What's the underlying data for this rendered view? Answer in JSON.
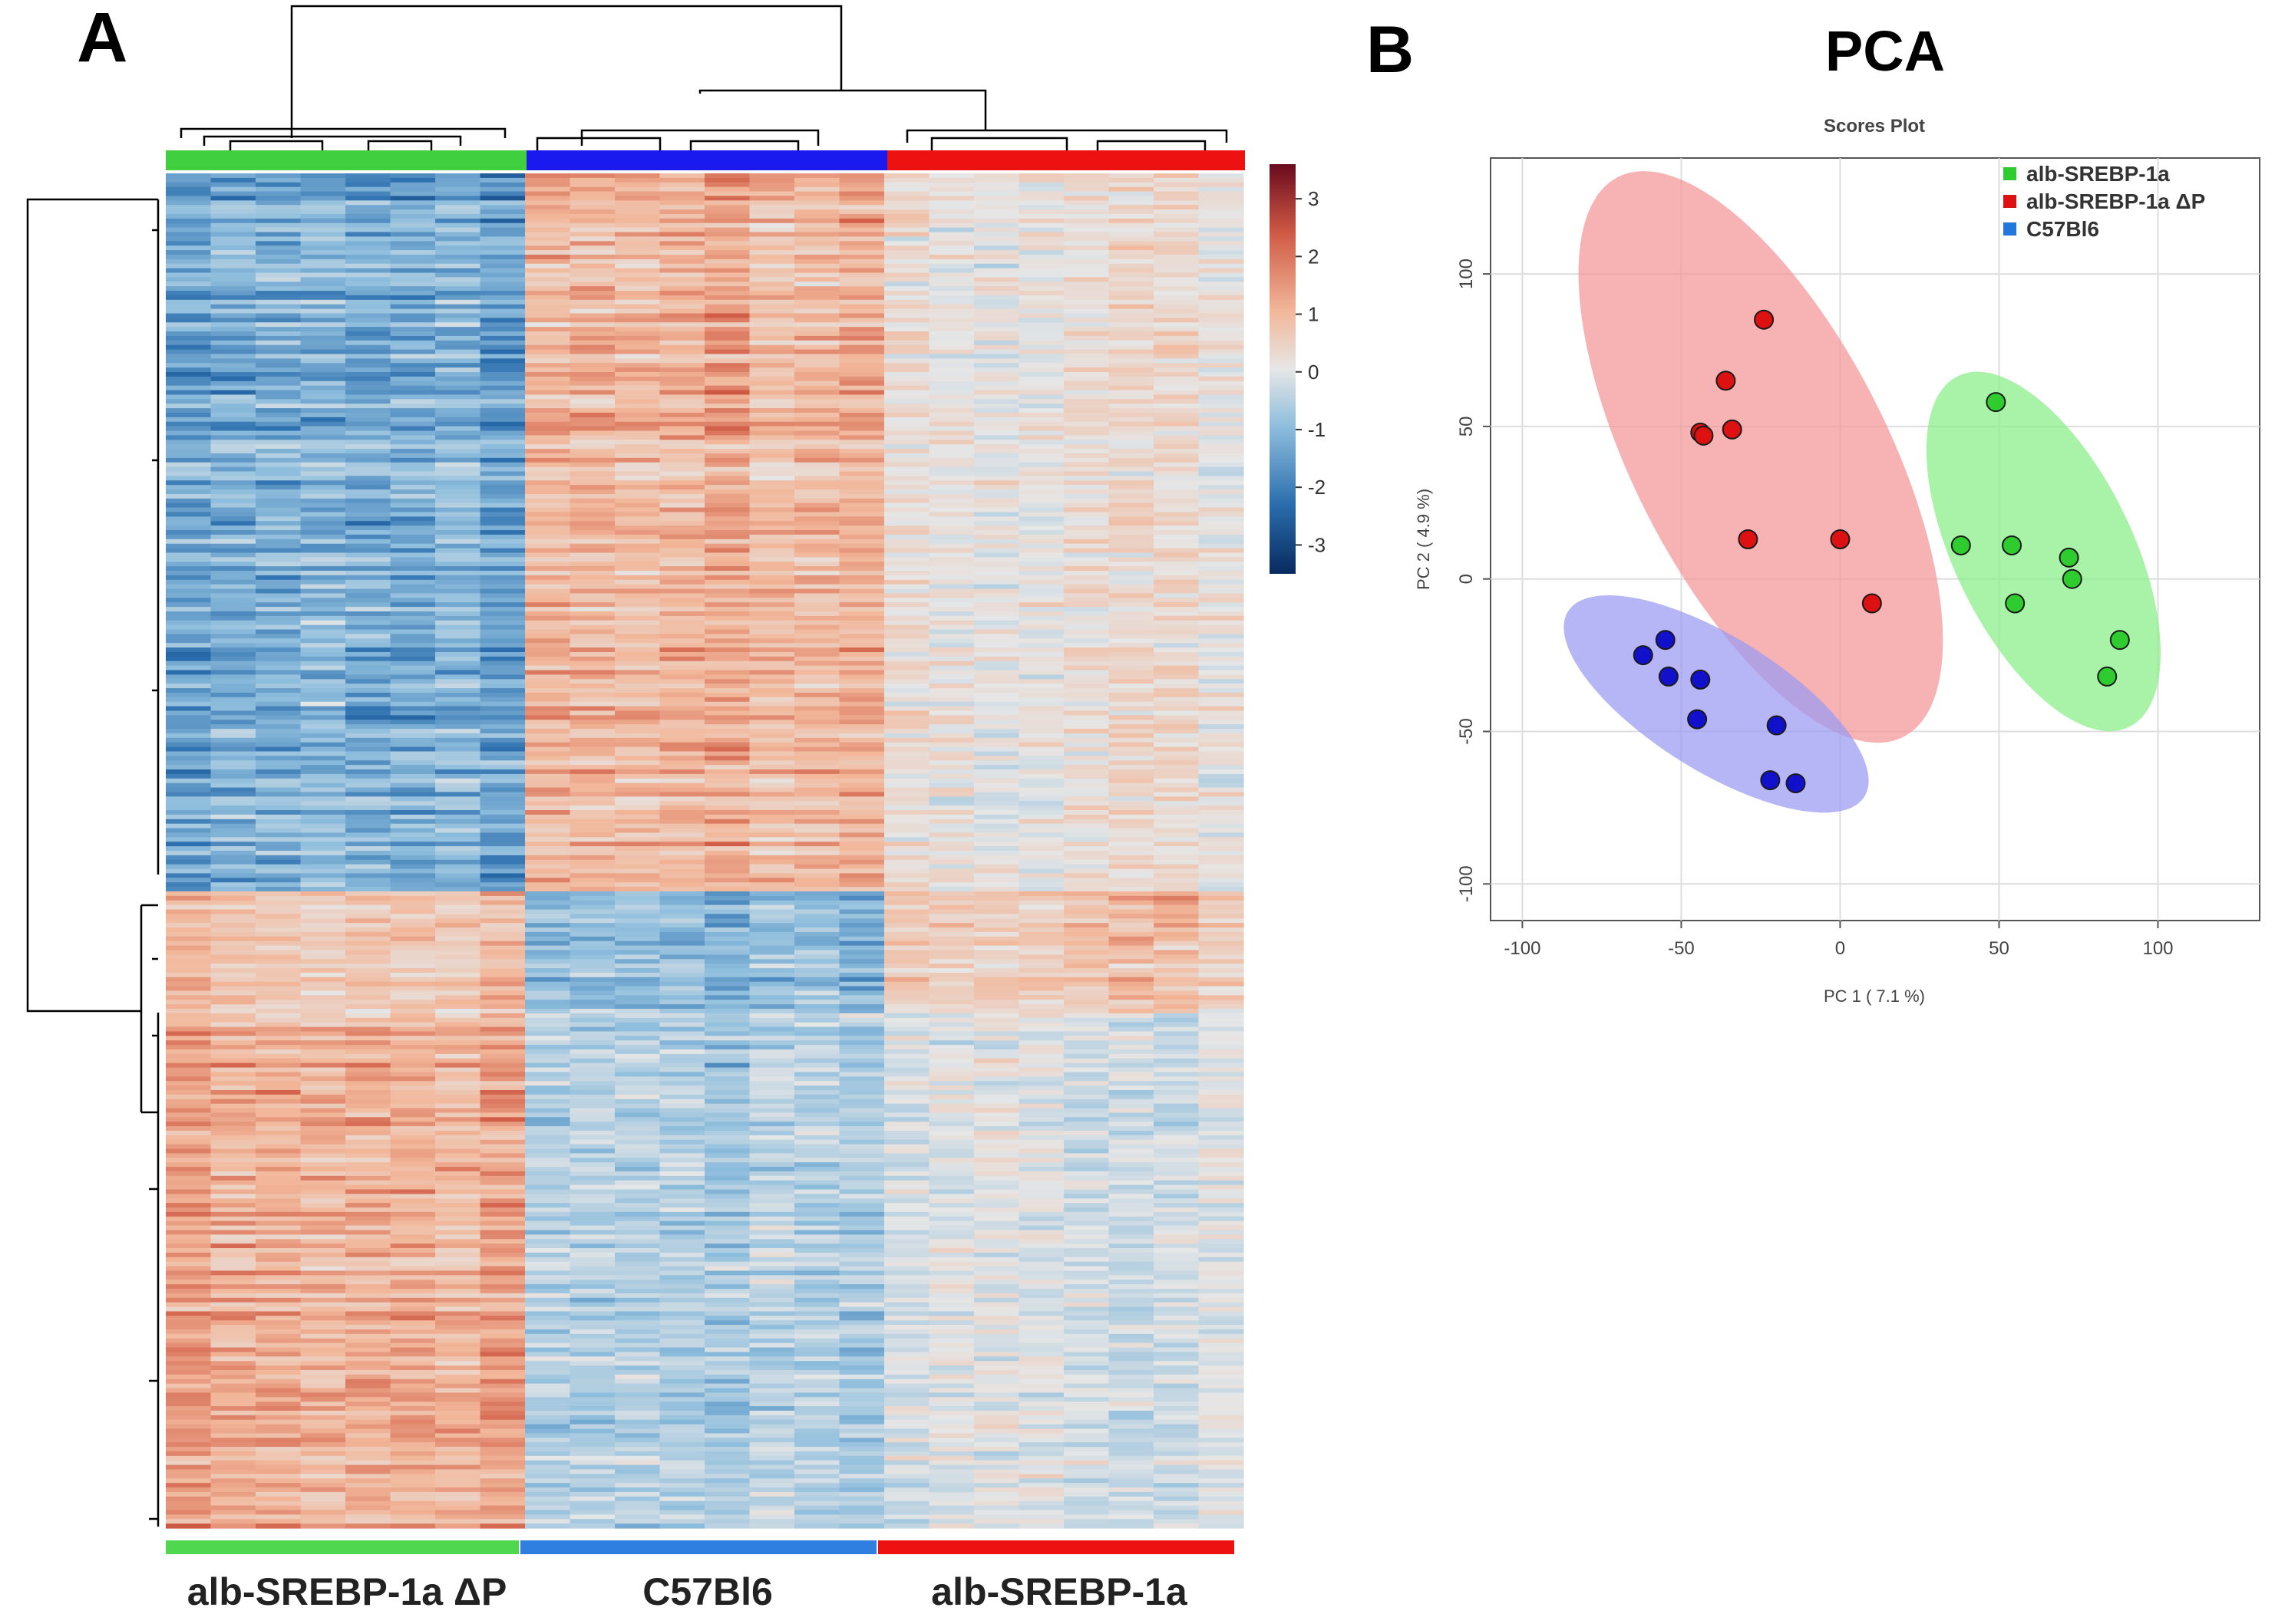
{
  "panel_a": {
    "label": "A",
    "groups": [
      {
        "name": "alb-SREBP-1a ΔP",
        "color": "#3fcf3f",
        "bottom_color": "#4fd84f"
      },
      {
        "name": "C57Bl6",
        "color": "#1a1aee",
        "bottom_color": "#2f7fe0"
      },
      {
        "name": "alb-SREBP-1a",
        "color": "#ee1111",
        "bottom_color": "#ee1111"
      }
    ],
    "colorbar": {
      "ticks": [
        "3",
        "2",
        "1",
        "0",
        "-1",
        "-2",
        "-3"
      ],
      "min": -3.5,
      "max": 3.6,
      "colors": [
        "#082a5e",
        "#2b6eae",
        "#8fbedd",
        "#e6e6e6",
        "#f2b79a",
        "#d05b45",
        "#6a0a1e"
      ]
    }
  },
  "panel_b": {
    "label": "B",
    "title": "PCA"
  },
  "chart_data": [
    {
      "type": "heatmap",
      "title": "",
      "columns_per_group": 8,
      "rows": 300,
      "row_clusters": [
        {
          "rows_fraction": 0.53,
          "pattern": [
            -1.3,
            1.2,
            0.35
          ]
        },
        {
          "rows_fraction": 0.09,
          "pattern": [
            0.8,
            -1.1,
            0.9
          ]
        },
        {
          "rows_fraction": 0.38,
          "pattern": [
            1.3,
            -0.7,
            -0.25
          ]
        }
      ],
      "value_range": [
        -3.5,
        3.6
      ],
      "xlabels": [
        "alb-SREBP-1a ΔP",
        "C57Bl6",
        "alb-SREBP-1a"
      ]
    },
    {
      "type": "scatter",
      "title": "Scores Plot",
      "xlabel": "PC 1 ( 7.1 %)",
      "ylabel": "PC 2 ( 4.9 %)",
      "xlim": [
        -110,
        132
      ],
      "ylim": [
        -112,
        138
      ],
      "xticks": [
        -100,
        -50,
        0,
        50,
        100
      ],
      "yticks": [
        -100,
        -50,
        0,
        50,
        100
      ],
      "grid": true,
      "legend_position": "top-right",
      "series": [
        {
          "name": "alb-SREBP-1a",
          "color": "#2ecc2e",
          "ellipse_color": "#88ee88",
          "ellipse": {
            "cx": 64,
            "cy": 9,
            "rx": 28,
            "ry": 64,
            "angle": -26
          },
          "points": [
            [
              49,
              58
            ],
            [
              38,
              11
            ],
            [
              54,
              11
            ],
            [
              55,
              -8
            ],
            [
              72,
              7
            ],
            [
              73,
              0
            ],
            [
              88,
              -20
            ],
            [
              84,
              -32
            ]
          ]
        },
        {
          "name": "alb-SREBP-1a ΔP",
          "color": "#dd1111",
          "ellipse_color": "#f49595",
          "ellipse": {
            "cx": -25,
            "cy": 40,
            "rx": 40,
            "ry": 103,
            "angle": -27
          },
          "points": [
            [
              -24,
              85
            ],
            [
              -36,
              65
            ],
            [
              -44,
              48
            ],
            [
              -43,
              47
            ],
            [
              -34,
              49
            ],
            [
              -29,
              13
            ],
            [
              0,
              13
            ],
            [
              10,
              -8
            ]
          ]
        },
        {
          "name": "C57Bl6",
          "color": "#1111cc",
          "ellipse_color": "#9a9af2",
          "ellipse": {
            "cx": -39,
            "cy": -41,
            "rx": 55,
            "ry": 22,
            "angle": 32
          },
          "points": [
            [
              -62,
              -25
            ],
            [
              -55,
              -20
            ],
            [
              -54,
              -32
            ],
            [
              -44,
              -33
            ],
            [
              -45,
              -46
            ],
            [
              -20,
              -48
            ],
            [
              -22,
              -66
            ],
            [
              -14,
              -67
            ]
          ]
        }
      ]
    }
  ]
}
